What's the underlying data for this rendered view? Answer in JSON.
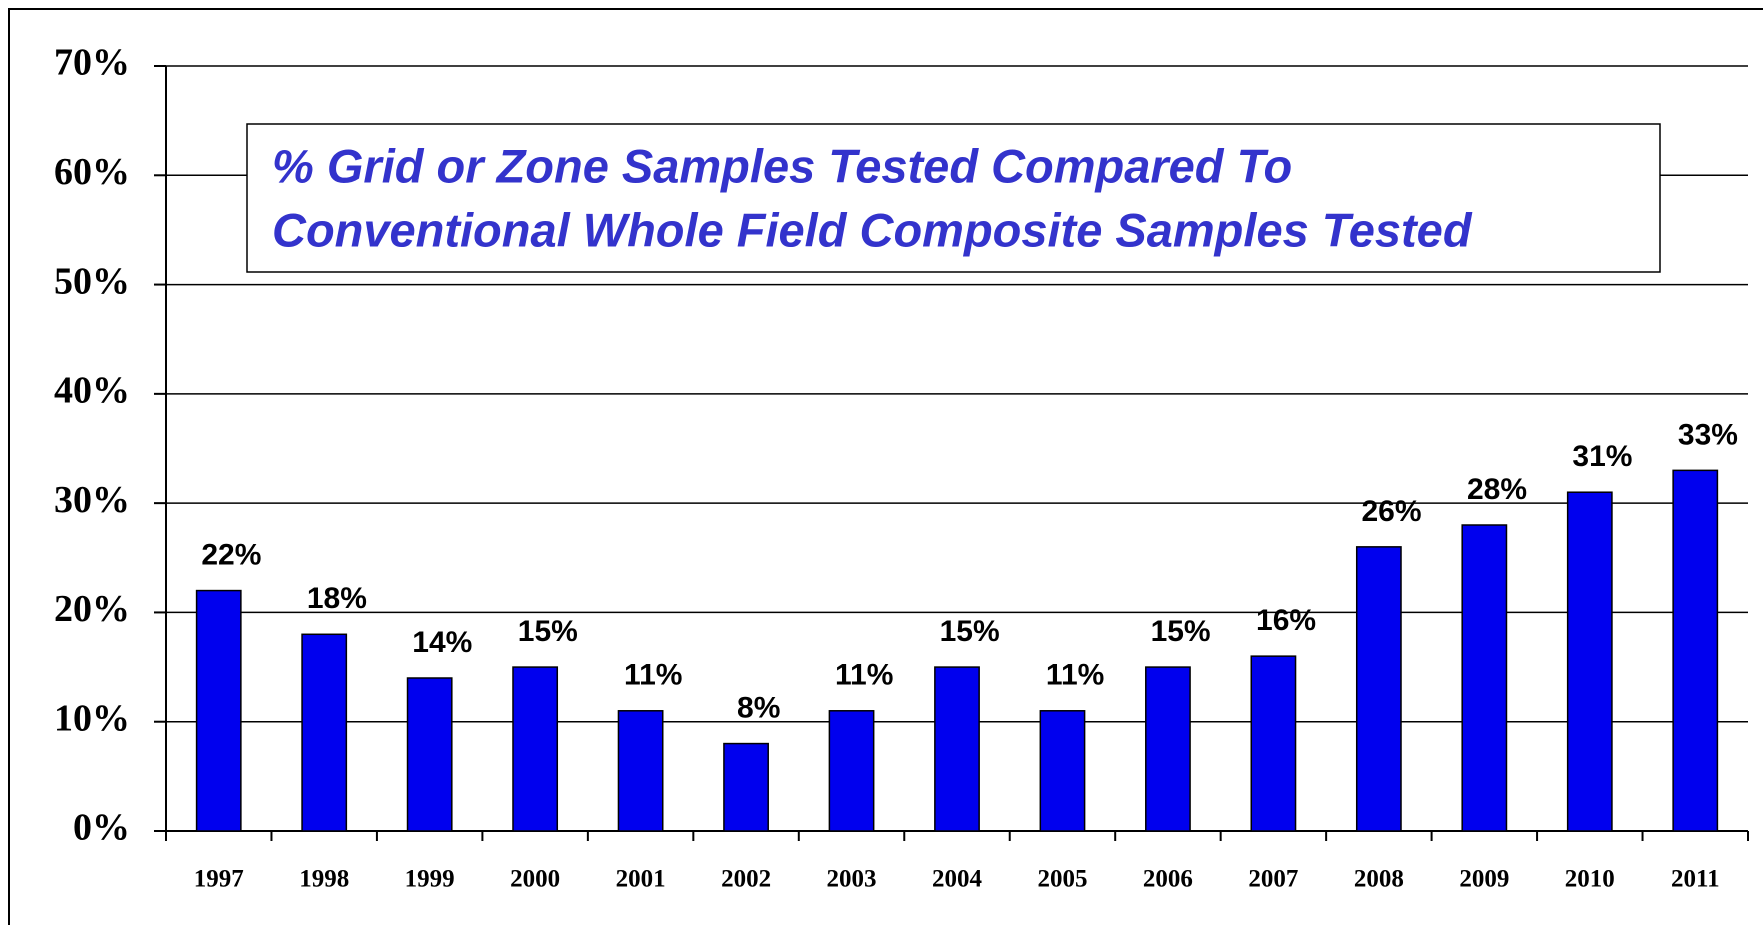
{
  "chart_data": {
    "type": "bar",
    "title": [
      "% Grid or Zone Samples Tested Compared To",
      "Conventional Whole Field Composite Samples Tested"
    ],
    "categories": [
      "1997",
      "1998",
      "1999",
      "2000",
      "2001",
      "2002",
      "2003",
      "2004",
      "2005",
      "2006",
      "2007",
      "2008",
      "2009",
      "2010",
      "2011"
    ],
    "values": [
      22,
      18,
      14,
      15,
      11,
      8,
      11,
      15,
      11,
      15,
      16,
      26,
      28,
      31,
      33
    ],
    "value_labels": [
      "22%",
      "18%",
      "14%",
      "15%",
      "11%",
      "8%",
      "11%",
      "15%",
      "11%",
      "15%",
      "16%",
      "26%",
      "28%",
      "31%",
      "33%"
    ],
    "color": "#0000ee",
    "ylim": [
      0,
      70
    ],
    "yticks": [
      {
        "value": 0,
        "label": "0%"
      },
      {
        "value": 10,
        "label": "10%"
      },
      {
        "value": 20,
        "label": "20%"
      },
      {
        "value": 30,
        "label": "30%"
      },
      {
        "value": 40,
        "label": "40%"
      },
      {
        "value": 50,
        "label": "50%"
      },
      {
        "value": 60,
        "label": "60%"
      },
      {
        "value": 70,
        "label": "70%"
      }
    ],
    "grid": true
  }
}
